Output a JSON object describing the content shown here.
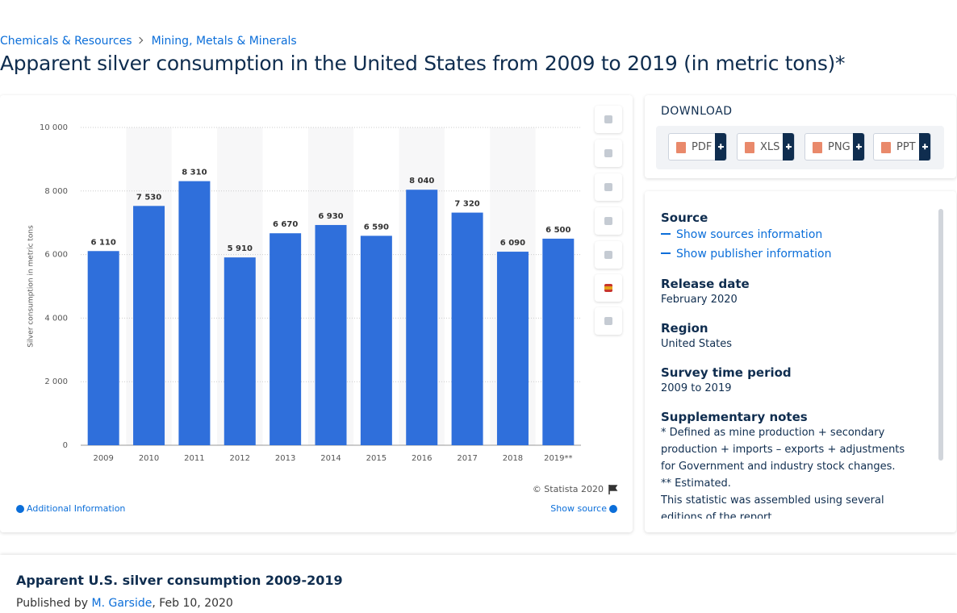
{
  "breadcrumb": [
    "Chemicals & Resources",
    "Mining, Metals & Minerals"
  ],
  "title": "Apparent silver consumption in the United States from 2009 to 2019 (in metric tons)*",
  "chart_data": {
    "type": "bar",
    "y_label": "Silver consumption in metric tons",
    "categories": [
      "2009",
      "2010",
      "2011",
      "2012",
      "2013",
      "2014",
      "2015",
      "2016",
      "2017",
      "2018",
      "2019**"
    ],
    "values": [
      6110,
      7530,
      8310,
      5910,
      6670,
      6930,
      6590,
      8040,
      7320,
      6090,
      6500
    ],
    "value_labels": [
      "6 110",
      "7 530",
      "8 310",
      "5 910",
      "6 670",
      "6 930",
      "6 590",
      "8 040",
      "7 320",
      "6 090",
      "6 500"
    ],
    "color": "#2f6fdb",
    "ylim": [
      0,
      10000
    ],
    "yticks": [
      0,
      {
        "value": 2000,
        "label": "2 000"
      },
      {
        "value": 4000,
        "label": "4 000"
      },
      {
        "value": 6000,
        "label": "6 000"
      },
      {
        "value": 8000,
        "label": "8 000"
      },
      {
        "value": 10000,
        "label": "10 000"
      }
    ],
    "grid": true
  },
  "chart_footer": {
    "copyright": "© Statista 2020",
    "additional": "Additional Information",
    "show_source": "Show source"
  },
  "download": {
    "heading": "DOWNLOAD",
    "formats": [
      "PDF",
      "XLS",
      "PNG",
      "PPT"
    ]
  },
  "info": {
    "source_heading": "Source",
    "source_links": [
      "Show sources information",
      "Show publisher information"
    ],
    "sections": [
      {
        "heading": "Release date",
        "lines": [
          "February 2020"
        ]
      },
      {
        "heading": "Region",
        "lines": [
          "United States"
        ]
      },
      {
        "heading": "Survey time period",
        "lines": [
          "2009 to 2019"
        ]
      },
      {
        "heading": "Supplementary notes",
        "lines": [
          "* Defined as mine production + secondary production + imports – exports + adjustments for Government and industry stock changes.",
          "** Estimated.",
          "This statistic was assembled using several editions of the report"
        ]
      }
    ]
  },
  "article": {
    "title": "Apparent U.S. silver consumption 2009-2019",
    "published_prefix": "Published by",
    "author": "M. Garside",
    "date": ", Feb 10, 2020"
  }
}
